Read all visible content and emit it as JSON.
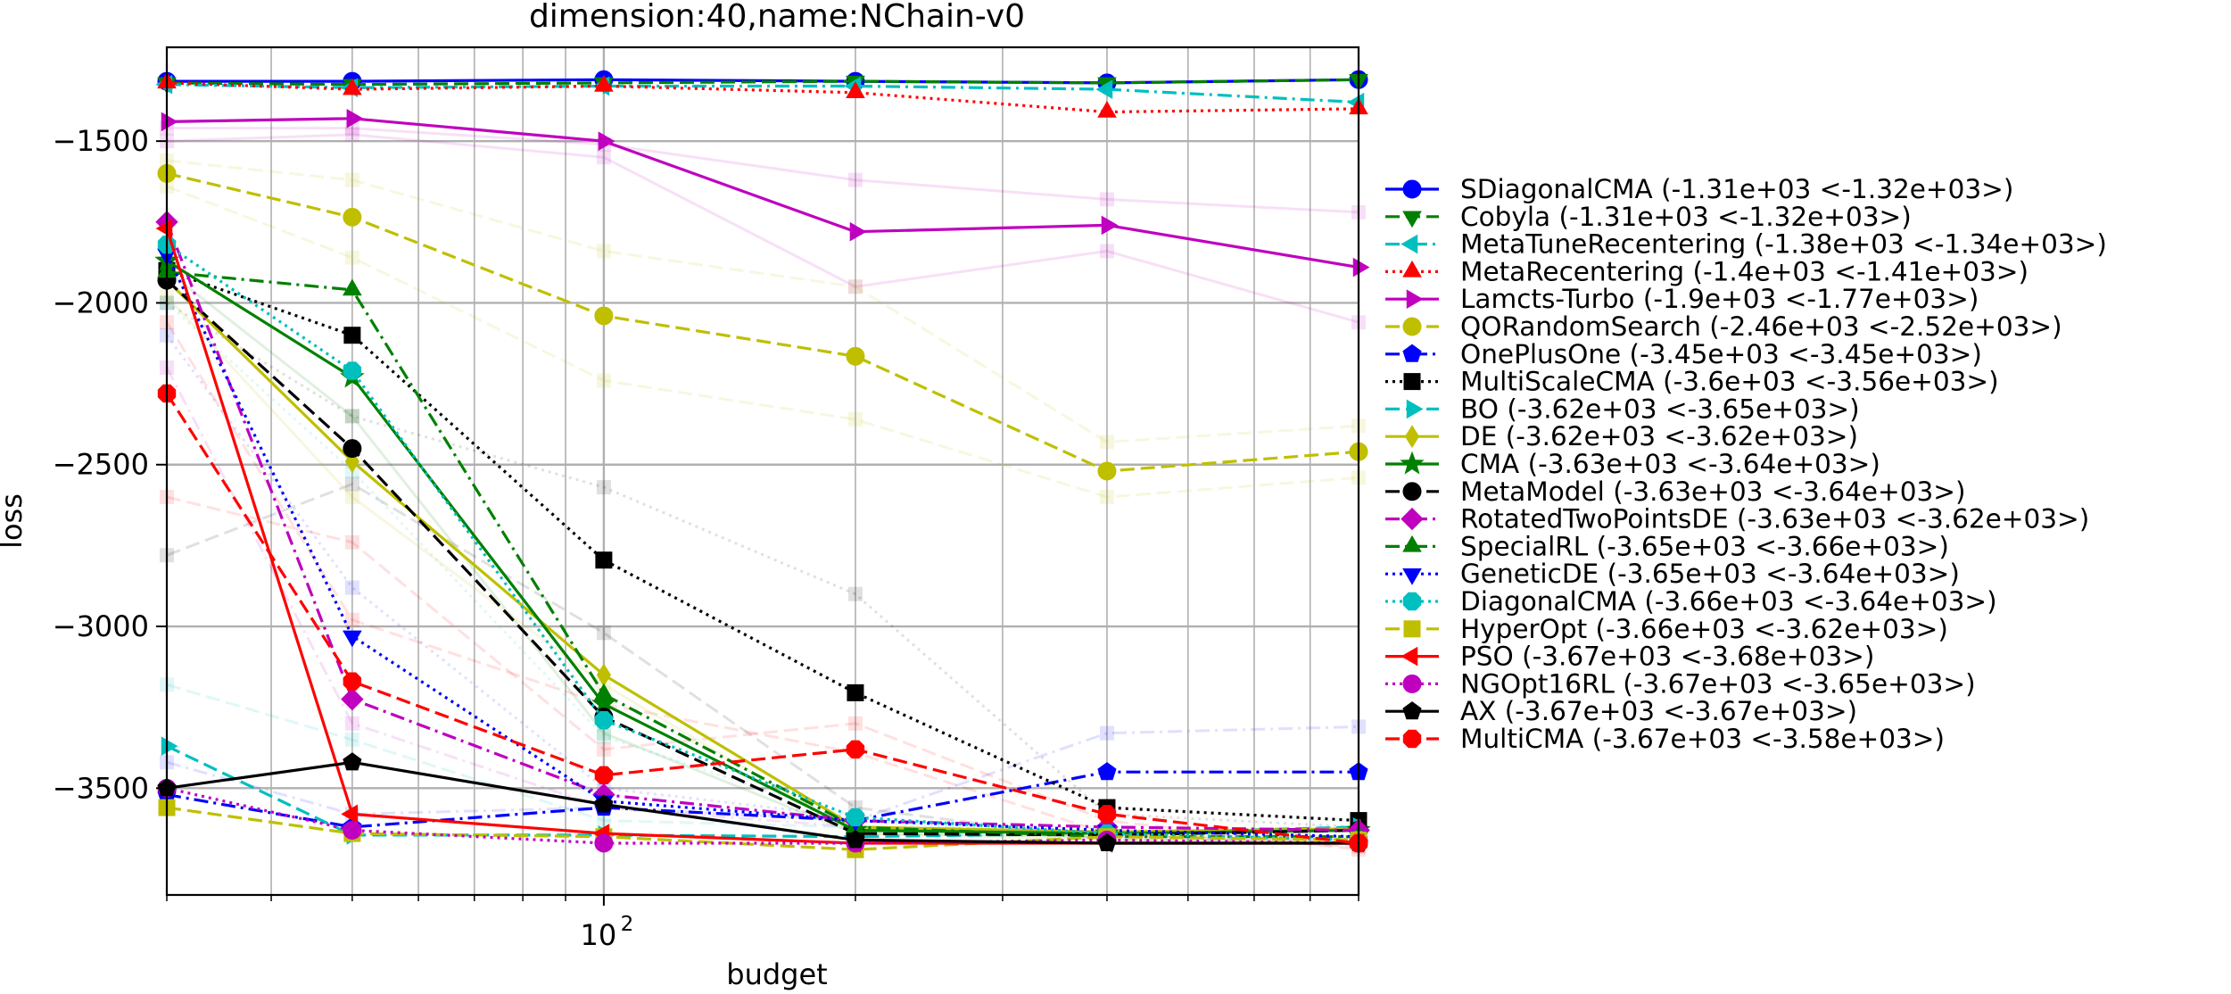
{
  "chart_data": {
    "type": "line",
    "title": "dimension:40,name:NChain-v0",
    "xlabel": "budget",
    "ylabel": "loss",
    "xscale": "log",
    "xlim": [
      30,
      800
    ],
    "ylim": [
      -3830,
      -1210
    ],
    "grid": true,
    "legend_position": "right, outside plot",
    "x": [
      30,
      50,
      100,
      200,
      400,
      800
    ],
    "x_tick_labels": [
      {
        "value": 100,
        "label": "10",
        "exponent": "2"
      }
    ],
    "y_ticks": [
      -3500,
      -3000,
      -2500,
      -2000,
      -1500
    ],
    "y_tick_labels": [
      "−3500",
      "−3000",
      "−2500",
      "−2000",
      "−1500"
    ],
    "series": [
      {
        "name": "SDiagonalCMA (-1.31e+03 <-1.32e+03>)",
        "color": "#0000ff",
        "dash": "solid",
        "marker": "circle",
        "values": [
          -1315,
          -1315,
          -1310,
          -1315,
          -1320,
          -1310
        ]
      },
      {
        "name": "Cobyla (-1.31e+03 <-1.32e+03>)",
        "color": "#008000",
        "dash": "dashed",
        "marker": "triangle-down",
        "values": [
          -1320,
          -1325,
          -1320,
          -1315,
          -1320,
          -1310
        ]
      },
      {
        "name": "MetaTuneRecentering (-1.38e+03 <-1.34e+03>)",
        "color": "#00bfbf",
        "dash": "dashdot",
        "marker": "triangle-left",
        "values": [
          -1325,
          -1335,
          -1330,
          -1330,
          -1340,
          -1380
        ]
      },
      {
        "name": "MetaRecentering (-1.4e+03 <-1.41e+03>)",
        "color": "#ff0000",
        "dash": "dotted",
        "marker": "triangle-up",
        "values": [
          -1320,
          -1340,
          -1330,
          -1350,
          -1410,
          -1400
        ]
      },
      {
        "name": "Lamcts-Turbo (-1.9e+03 <-1.77e+03>)",
        "color": "#bf00bf",
        "dash": "solid",
        "marker": "triangle-right",
        "values": [
          -1440,
          -1430,
          -1500,
          -1780,
          -1760,
          -1890
        ]
      },
      {
        "name": "QORandomSearch (-2.46e+03 <-2.52e+03>)",
        "color": "#bfbf00",
        "dash": "dashed",
        "marker": "circle",
        "values": [
          -1600,
          -1735,
          -2040,
          -2165,
          -2520,
          -2460
        ]
      },
      {
        "name": "OnePlusOne (-3.45e+03 <-3.45e+03>)",
        "color": "#0000ff",
        "dash": "dashdot",
        "marker": "pentagon",
        "values": [
          -3520,
          -3620,
          -3560,
          -3600,
          -3450,
          -3450
        ]
      },
      {
        "name": "MultiScaleCMA (-3.6e+03 <-3.56e+03>)",
        "color": "#000000",
        "dash": "dotted",
        "marker": "square",
        "values": [
          -1900,
          -2100,
          -2795,
          -3205,
          -3560,
          -3600
        ]
      },
      {
        "name": "BO (-3.62e+03 <-3.65e+03>)",
        "color": "#00bfbf",
        "dash": "dashed",
        "marker": "triangle-right",
        "values": [
          -3370,
          -3645,
          -3645,
          -3650,
          -3640,
          -3620
        ]
      },
      {
        "name": "DE (-3.62e+03 <-3.62e+03>)",
        "color": "#bfbf00",
        "dash": "solid",
        "marker": "diamond-thin",
        "values": [
          -1930,
          -2490,
          -3150,
          -3620,
          -3635,
          -3625
        ]
      },
      {
        "name": "CMA (-3.63e+03 <-3.64e+03>)",
        "color": "#008000",
        "dash": "solid",
        "marker": "star",
        "values": [
          -1870,
          -2230,
          -3240,
          -3630,
          -3640,
          -3630
        ]
      },
      {
        "name": "MetaModel (-3.63e+03 <-3.64e+03>)",
        "color": "#000000",
        "dash": "dashed",
        "marker": "circle",
        "values": [
          -1930,
          -2450,
          -3280,
          -3640,
          -3645,
          -3630
        ]
      },
      {
        "name": "RotatedTwoPointsDE (-3.63e+03 <-3.62e+03>)",
        "color": "#bf00bf",
        "dash": "dashdot",
        "marker": "diamond",
        "values": [
          -1750,
          -3225,
          -3520,
          -3600,
          -3620,
          -3630
        ]
      },
      {
        "name": "SpecialRL (-3.65e+03 <-3.66e+03>)",
        "color": "#008000",
        "dash": "dashdot",
        "marker": "triangle-up",
        "values": [
          -1905,
          -1960,
          -3210,
          -3620,
          -3650,
          -3650
        ]
      },
      {
        "name": "GeneticDE (-3.65e+03 <-3.64e+03>)",
        "color": "#0000ff",
        "dash": "dotted",
        "marker": "triangle-down",
        "values": [
          -1850,
          -3030,
          -3540,
          -3600,
          -3630,
          -3650
        ]
      },
      {
        "name": "DiagonalCMA (-3.66e+03 <-3.64e+03>)",
        "color": "#00bfbf",
        "dash": "dotted",
        "marker": "octagon",
        "values": [
          -1820,
          -2210,
          -3290,
          -3590,
          -3640,
          -3660
        ]
      },
      {
        "name": "HyperOpt (-3.66e+03 <-3.62e+03>)",
        "color": "#bfbf00",
        "dash": "dashed",
        "marker": "square",
        "values": [
          -3560,
          -3640,
          -3650,
          -3690,
          -3650,
          -3660
        ]
      },
      {
        "name": "PSO (-3.67e+03 <-3.68e+03>)",
        "color": "#ff0000",
        "dash": "solid",
        "marker": "triangle-left",
        "values": [
          -1770,
          -3580,
          -3640,
          -3670,
          -3670,
          -3670
        ]
      },
      {
        "name": "NGOpt16RL (-3.67e+03 <-3.65e+03>)",
        "color": "#bf00bf",
        "dash": "dotted",
        "marker": "circle",
        "values": [
          -3500,
          -3630,
          -3670,
          -3670,
          -3660,
          -3670
        ]
      },
      {
        "name": "AX (-3.67e+03 <-3.67e+03>)",
        "color": "#000000",
        "dash": "solid",
        "marker": "pentagon",
        "values": [
          -3500,
          -3420,
          -3550,
          -3660,
          -3670,
          -3670
        ]
      },
      {
        "name": "MultiCMA (-3.67e+03 <-3.58e+03>)",
        "color": "#ff0000",
        "dash": "dashed",
        "marker": "octagon",
        "values": [
          -2280,
          -3170,
          -3460,
          -3380,
          -3580,
          -3670
        ]
      }
    ],
    "faint_background_lines": [
      {
        "color": "#bf00bf",
        "dash": "solid",
        "values": [
          -1460,
          -1460,
          -1510,
          -1620,
          -1680,
          -1720
        ]
      },
      {
        "color": "#bf00bf",
        "dash": "solid",
        "values": [
          -1500,
          -1480,
          -1550,
          -1950,
          -1840,
          -2060
        ]
      },
      {
        "color": "#bfbf00",
        "dash": "dashed",
        "values": [
          -1560,
          -1620,
          -1840,
          -1950,
          -2430,
          -2380
        ]
      },
      {
        "color": "#bfbf00",
        "dash": "dashed",
        "values": [
          -1640,
          -1860,
          -2240,
          -2360,
          -2600,
          -2540
        ]
      },
      {
        "color": "#000000",
        "dash": "dotted",
        "values": [
          -2000,
          -2350,
          -2570,
          -2900,
          -3580,
          -3620
        ]
      },
      {
        "color": "#000000",
        "dash": "dashed",
        "values": [
          -2780,
          -2560,
          -3020,
          -3560,
          -3660,
          -3660
        ]
      },
      {
        "color": "#0000ff",
        "dash": "dashdot",
        "values": [
          -3420,
          -3580,
          -3560,
          -3600,
          -3330,
          -3310
        ]
      },
      {
        "color": "#00bfbf",
        "dash": "dashed",
        "values": [
          -3180,
          -3350,
          -3600,
          -3620,
          -3630,
          -3630
        ]
      },
      {
        "color": "#008000",
        "dash": "solid",
        "values": [
          -1900,
          -2350,
          -3330,
          -3640,
          -3650,
          -3650
        ]
      },
      {
        "color": "#ff0000",
        "dash": "dashed",
        "values": [
          -2600,
          -2740,
          -3380,
          -3300,
          -3600,
          -3690
        ]
      },
      {
        "color": "#bf00bf",
        "dash": "dashdot",
        "values": [
          -2200,
          -3300,
          -3560,
          -3620,
          -3640,
          -3650
        ]
      },
      {
        "color": "#0000ff",
        "dash": "dotted",
        "values": [
          -2100,
          -2880,
          -3500,
          -3590,
          -3640,
          -3660
        ]
      },
      {
        "color": "#ff0000",
        "dash": "dashed",
        "values": [
          -2060,
          -2980,
          -3240,
          -3390,
          -3640,
          -3680
        ]
      },
      {
        "color": "#00bfbf",
        "dash": "dotted",
        "values": [
          -2000,
          -2520,
          -3340,
          -3600,
          -3650,
          -3670
        ]
      },
      {
        "color": "#bfbf00",
        "dash": "solid",
        "values": [
          -1980,
          -2600,
          -3180,
          -3640,
          -3660,
          -3670
        ]
      }
    ]
  }
}
